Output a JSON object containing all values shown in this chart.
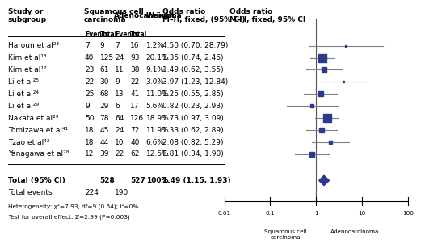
{
  "studies": [
    {
      "name": "Haroun et al²³",
      "scc_events": 7,
      "scc_total": 9,
      "ad_events": 7,
      "ad_total": 16,
      "weight": "1.2%",
      "or": 4.5,
      "ci_low": 0.7,
      "ci_high": 28.79,
      "or_text": "4.50 (0.70, 28.79)"
    },
    {
      "name": "Kim et al¹³",
      "scc_events": 40,
      "scc_total": 125,
      "ad_events": 24,
      "ad_total": 93,
      "weight": "20.1%",
      "or": 1.35,
      "ci_low": 0.74,
      "ci_high": 2.46,
      "or_text": "1.35 (0.74, 2.46)"
    },
    {
      "name": "Kim et al¹⁷",
      "scc_events": 23,
      "scc_total": 61,
      "ad_events": 11,
      "ad_total": 38,
      "weight": "9.1%",
      "or": 1.49,
      "ci_low": 0.62,
      "ci_high": 3.55,
      "or_text": "1.49 (0.62, 3.55)"
    },
    {
      "name": "Li et al²⁵",
      "scc_events": 22,
      "scc_total": 30,
      "ad_events": 9,
      "ad_total": 22,
      "weight": "3.0%",
      "or": 3.97,
      "ci_low": 1.23,
      "ci_high": 12.84,
      "or_text": "3.97 (1.23, 12.84)"
    },
    {
      "name": "Li et al²⁴",
      "scc_events": 25,
      "scc_total": 68,
      "ad_events": 13,
      "ad_total": 41,
      "weight": "11.0%",
      "or": 1.25,
      "ci_low": 0.55,
      "ci_high": 2.85,
      "or_text": "1.25 (0.55, 2.85)"
    },
    {
      "name": "Li et al²⁹",
      "scc_events": 9,
      "scc_total": 29,
      "ad_events": 6,
      "ad_total": 17,
      "weight": "5.6%",
      "or": 0.82,
      "ci_low": 0.23,
      "ci_high": 2.93,
      "or_text": "0.82 (0.23, 2.93)"
    },
    {
      "name": "Nakata et al²⁹",
      "scc_events": 50,
      "scc_total": 78,
      "ad_events": 64,
      "ad_total": 126,
      "weight": "18.9%",
      "or": 1.73,
      "ci_low": 0.97,
      "ci_high": 3.09,
      "or_text": "1.73 (0.97, 3.09)"
    },
    {
      "name": "Tomizawa et al⁴¹",
      "scc_events": 18,
      "scc_total": 45,
      "ad_events": 24,
      "ad_total": 72,
      "weight": "11.9%",
      "or": 1.33,
      "ci_low": 0.62,
      "ci_high": 2.89,
      "or_text": "1.33 (0.62, 2.89)"
    },
    {
      "name": "Tzao et al⁴²",
      "scc_events": 18,
      "scc_total": 44,
      "ad_events": 10,
      "ad_total": 40,
      "weight": "6.6%",
      "or": 2.08,
      "ci_low": 0.82,
      "ci_high": 5.29,
      "or_text": "2.08 (0.82, 5.29)"
    },
    {
      "name": "Yanagawa et al²⁸",
      "scc_events": 12,
      "scc_total": 39,
      "ad_events": 22,
      "ad_total": 62,
      "weight": "12.6%",
      "or": 0.81,
      "ci_low": 0.34,
      "ci_high": 1.9,
      "or_text": "0.81 (0.34, 1.90)"
    }
  ],
  "total": {
    "scc_total": 528,
    "ad_total": 527,
    "scc_events": 224,
    "ad_events": 190,
    "or": 1.49,
    "ci_low": 1.15,
    "ci_high": 1.93,
    "or_text": "1.49 (1.15, 1.93)",
    "weight": "100%"
  },
  "heterogeneity": "Heterogeneity: χ²=7.93, df=9 (0.54); I²=0%",
  "overall_effect": "Test for overall effect: Z=2.99 (P=0.003)",
  "col_headers": {
    "study": "Study or\nsubgroup",
    "scc": "Squamous cell\ncarcinoma",
    "ad": "Adenocarcinoma",
    "weight": "Weight",
    "or_num": "Odds ratio\nM–H, fixed, (95% CI)",
    "or_plot": "Odds ratio\nM–H, fixed, 95% CI"
  },
  "marker_color": "#2B3A8B",
  "line_color": "#808080",
  "diamond_color": "#2B3A8B",
  "x_ticks": [
    0.01,
    0.1,
    1,
    10,
    100
  ],
  "x_tick_labels": [
    "0.01",
    "0.1",
    "1",
    "10",
    "100"
  ],
  "font_size": 6.5,
  "small_font": 5.5,
  "total_rows": 18
}
